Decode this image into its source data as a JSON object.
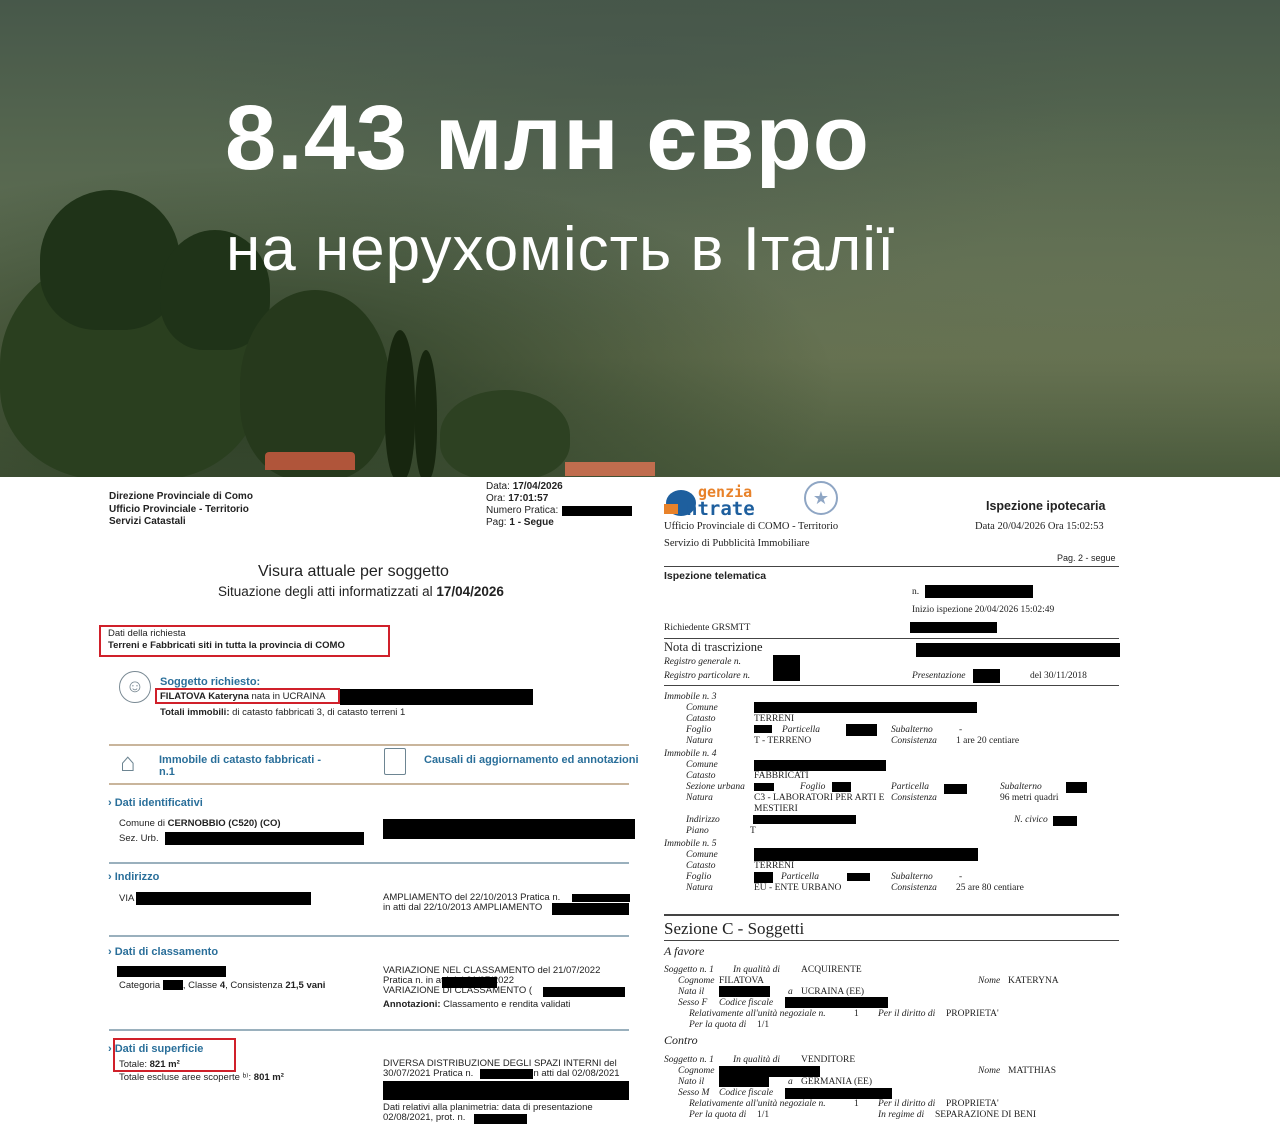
{
  "hero": {
    "title": "8.43 млн євро",
    "subtitle": "на нерухомість в Італії"
  },
  "left_doc": {
    "office": [
      "Direzione Provinciale di Como",
      "Ufficio Provinciale - Territorio",
      "Servizi Catastali"
    ],
    "data_label": "Data:",
    "data": "17/04/2026",
    "ora_label": "Ora:",
    "ora": "17:01:57",
    "numero_pratica": "Numero Pratica:",
    "pag_label": "Pag:",
    "pag": "1 - Segue",
    "title": "Visura attuale per soggetto",
    "subtitle": "Situazione degli atti informatizzati al",
    "subtitle_date": "17/04/2026",
    "richiesta_label": "Dati della richiesta",
    "richiesta": "Terreni e Fabbricati siti in tutta la provincia di COMO",
    "soggetto_label": "Soggetto richiesto:",
    "soggetto_name": "FILATOVA Kateryna",
    "soggetto_nata": "nata in UCRAINA",
    "totali_label": "Totali immobili:",
    "totali": "di catasto fabbricati 3,  di catasto terreni 1",
    "immobile_heading": "Immobile di catasto fabbricati -",
    "immobile_n": "n.1",
    "causali_heading": "Causali di aggiornamento ed annotazioni",
    "ident_heading": "Dati identificativi",
    "comune_label": "Comune di",
    "comune": "CERNOBBIO (C520) (CO)",
    "sez_urb": "Sez. Urb.",
    "indirizzo_heading": "Indirizzo",
    "via": "VIA",
    "ampl1": "AMPLIAMENTO del 22/10/2013 Pratica n.",
    "ampl2": "in atti dal 22/10/2013 AMPLIAMENTO",
    "class_heading": "Dati di classamento",
    "categoria": "Categoria",
    "classe": ", Classe",
    "classe_v": "4",
    "consistenza": ", Consistenza",
    "consistenza_v": "21,5 vani",
    "var1": "VARIAZIONE  NEL  CLASSAMENTO  del  21/07/2022",
    "var2": "Pratica   n.                          in   atti   dal   21/07/2022",
    "var3": "VARIAZIONE DI CLASSAMENTO (",
    "annot_label": "Annotazioni:",
    "annot": "Classamento e rendita validati",
    "sup_heading": "Dati di superficie",
    "totale_label": "Totale:",
    "totale": "821 m²",
    "escluse_label": "Totale escluse aree scoperte ᵇ⁾:",
    "escluse": "801 m²",
    "div1": "DIVERSA DISTRIBUZIONE DEGLI SPAZI INTERNI del",
    "div2": "30/07/2021 Pratica n.",
    "div2b": "in atti dal 02/08/2021",
    "plan1": "Dati relativi alla planimetria: data di presentazione",
    "plan2": "02/08/2021, prot. n."
  },
  "right_doc": {
    "logo": "Agenzia Entrate",
    "office1": "Ufficio Provinciale di  COMO - Territorio",
    "office2": "Servizio di Pubblicità Immobiliare",
    "title": "Ispezione ipotecaria",
    "datetime": "Data 20/04/2026  Ora 15:02:53",
    "pag": "Pag. 2 - segue",
    "telematica": "Ispezione telematica",
    "n": "n.",
    "inizio": "Inizio ispezione  20/04/2026 15:02:49",
    "richiedente": "Richiedente GRSMTT",
    "nota": "Nota di trascrizione",
    "reg_gen": "Registro generale n.",
    "reg_part": "Registro particolare n.",
    "presentazione": "Presentazione",
    "del": "del   30/11/2018",
    "imm3": {
      "head": "Immobile n.  3",
      "comune": "Comune",
      "catasto": "Catasto",
      "catasto_v": "TERRENI",
      "foglio": "Foglio",
      "particella": "Particella",
      "subalterno": "Subalterno",
      "sub_v": "-",
      "natura": "Natura",
      "natura_v": "T - TERRENO",
      "consistenza": "Consistenza",
      "cons_v": "1 are  20 centiare"
    },
    "imm4": {
      "head": "Immobile n.  4",
      "comune": "Comune",
      "catasto": "Catasto",
      "catasto_v": "FABBRICATI",
      "sezione": "Sezione urbana",
      "foglio": "Foglio",
      "particella": "Particella",
      "subalterno": "Subalterno",
      "natura": "Natura",
      "natura_v": "C3 - LABORATORI PER ARTI E",
      "natura_v2": "MESTIERI",
      "consistenza": "Consistenza",
      "cons_v": "96 metri quadri",
      "indirizzo": "Indirizzo",
      "civico": "N. civico",
      "piano": "Piano",
      "piano_v": "T"
    },
    "imm5": {
      "head": "Immobile n.  5",
      "comune": "Comune",
      "catasto": "Catasto",
      "catasto_v": "TERRENI",
      "foglio": "Foglio",
      "particella": "Particella",
      "subalterno": "Subalterno",
      "sub_v": "-",
      "natura": "Natura",
      "natura_v": "EU - ENTE URBANO",
      "consistenza": "Consistenza",
      "cons_v": "25 are  80 centiare"
    },
    "sezione_c": "Sezione C - Soggetti",
    "a_favore": "A favore",
    "contro": "Contro",
    "fav": {
      "sogg": "Soggetto n.  1",
      "qualita": "In qualità di",
      "qualita_v": "ACQUIRENTE",
      "cognome": "Cognome",
      "cognome_v": "FILATOVA",
      "nome": "Nome",
      "nome_v": "KATERYNA",
      "nato": "Nata il",
      "a": "a",
      "luogo": "UCRAINA (EE)",
      "sesso": "Sesso  F",
      "cf": "Codice fiscale",
      "rel": "Relativamente all'unità negoziale n.",
      "rel_v": "1",
      "diritto": "Per il diritto di",
      "diritto_v": "PROPRIETA'",
      "quota": "Per la quota di",
      "quota_v": "1/1"
    },
    "con": {
      "sogg": "Soggetto n.  1",
      "qualita": "In qualità di",
      "qualita_v": "VENDITORE",
      "cognome": "Cognome",
      "nome": "Nome",
      "nome_v": "MATTHIAS",
      "nato": "Nato il",
      "a": "a",
      "luogo": "GERMANIA (EE)",
      "sesso": "Sesso  M",
      "cf": "Codice fiscale",
      "rel": "Relativamente all'unità negoziale n.",
      "rel_v": "1",
      "diritto": "Per il diritto di",
      "diritto_v": "PROPRIETA'",
      "quota": "Per la quota di",
      "quota_v": "1/1",
      "regime": "In regime di",
      "regime_v": "SEPARAZIONE DI BENI"
    }
  },
  "colors": {
    "accent_blue": "#2a6f9a",
    "highlight_red": "#d0202a",
    "logo_orange": "#e8822a",
    "logo_blue": "#1e5f9e"
  }
}
